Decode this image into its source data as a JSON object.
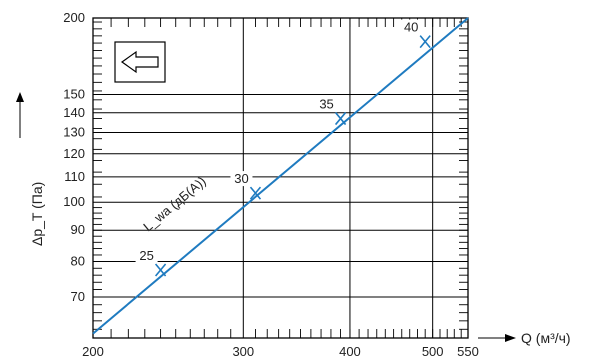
{
  "chart_data": {
    "type": "line",
    "xlabel": "Q (м³/ч)",
    "ylabel": "Δp_T (Па)",
    "x_scale": "log",
    "y_scale": "log",
    "xlim": [
      200,
      550
    ],
    "ylim": [
      60,
      200
    ],
    "x_ticks": [
      200,
      300,
      400,
      500,
      550
    ],
    "y_ticks": [
      70,
      80,
      90,
      100,
      110,
      120,
      130,
      140,
      150,
      200
    ],
    "grid": true,
    "series": [
      {
        "x": [
          200,
          550
        ],
        "y": [
          61,
          200
        ]
      }
    ],
    "lwa_label": "L_wa (дБ(A))",
    "lwa_marks": [
      {
        "label": "25",
        "x": 240,
        "y": 77.5
      },
      {
        "label": "30",
        "x": 310,
        "y": 103.5
      },
      {
        "label": "35",
        "x": 390,
        "y": 137
      },
      {
        "label": "40",
        "x": 490,
        "y": 183
      }
    ],
    "line_color": "#1f7bc0",
    "grid_color": "#000000"
  },
  "icons": {
    "flow_direction": "left-arrow-box-icon"
  }
}
